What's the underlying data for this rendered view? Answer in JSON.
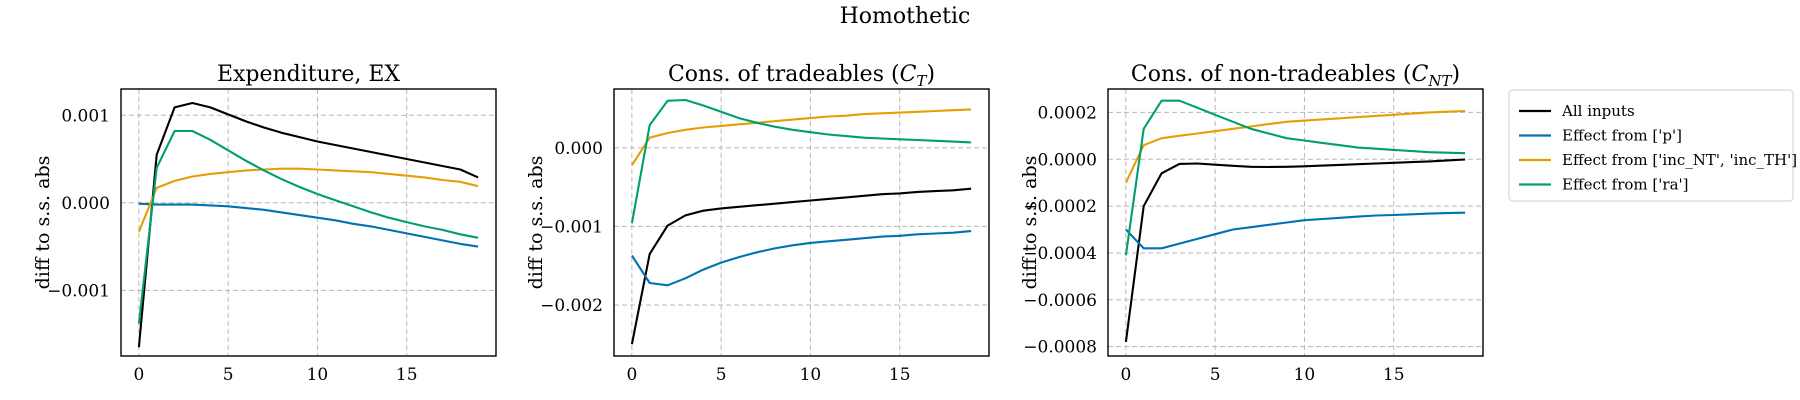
{
  "figure": {
    "suptitle": "Homothetic"
  },
  "legend": {
    "position": "right",
    "entries": [
      {
        "label": "All inputs",
        "color": "#000000"
      },
      {
        "label": "Effect from ['p']",
        "color": "#0072B2"
      },
      {
        "label": "Effect from ['inc_NT', 'inc_TH']",
        "color": "#E69F00"
      },
      {
        "label": "Effect from ['ra']",
        "color": "#009E73"
      }
    ]
  },
  "chart_data": [
    {
      "type": "line",
      "title": "Expenditure, EX",
      "xlabel": "",
      "ylabel": "diff to s.s. abs",
      "grid": true,
      "xlim": [
        -1,
        20
      ],
      "ylim": [
        -0.00175,
        0.0013
      ],
      "xticks": [
        0,
        5,
        10,
        15
      ],
      "xtick_labels": [
        "0",
        "5",
        "10",
        "15"
      ],
      "yticks": [
        -0.001,
        0,
        0.001
      ],
      "ytick_labels": [
        "−0.001",
        "0.000",
        "0.001"
      ],
      "x": [
        0,
        1,
        2,
        3,
        4,
        5,
        6,
        7,
        8,
        9,
        10,
        11,
        12,
        13,
        14,
        15,
        16,
        17,
        18,
        19
      ],
      "series": [
        {
          "name": "All inputs",
          "color": "#000000",
          "values": [
            -0.00165,
            0.00055,
            0.00109,
            0.00114,
            0.00109,
            0.00101,
            0.00093,
            0.00086,
            0.0008,
            0.00075,
            0.0007,
            0.00066,
            0.00062,
            0.00058,
            0.00054,
            0.0005,
            0.00046,
            0.00042,
            0.00038,
            0.00029
          ]
        },
        {
          "name": "Effect from ['p']",
          "color": "#0072B2",
          "values": [
            -1e-05,
            -2e-05,
            -2e-05,
            -2e-05,
            -3e-05,
            -4e-05,
            -6e-05,
            -8e-05,
            -0.00011,
            -0.00014,
            -0.00017,
            -0.0002,
            -0.00024,
            -0.00027,
            -0.00031,
            -0.00035,
            -0.00039,
            -0.00043,
            -0.00047,
            -0.0005
          ]
        },
        {
          "name": "Effect from ['inc_NT', 'inc_TH']",
          "color": "#E69F00",
          "values": [
            -0.00033,
            0.00017,
            0.00025,
            0.0003,
            0.00033,
            0.00035,
            0.00037,
            0.00038,
            0.00039,
            0.00039,
            0.00038,
            0.00037,
            0.00036,
            0.00035,
            0.00033,
            0.00031,
            0.00029,
            0.00026,
            0.00024,
            0.00019
          ]
        },
        {
          "name": "Effect from ['ra']",
          "color": "#009E73",
          "values": [
            -0.00138,
            0.0004,
            0.00082,
            0.00082,
            0.00072,
            0.0006,
            0.00048,
            0.00037,
            0.00027,
            0.00018,
            0.0001,
            3e-05,
            -4e-05,
            -0.00011,
            -0.00017,
            -0.00022,
            -0.00027,
            -0.00031,
            -0.00036,
            -0.0004
          ]
        }
      ]
    },
    {
      "type": "line",
      "title": "Cons. of tradeables (C_T)",
      "xlabel": "",
      "ylabel": "diff to s.s. abs",
      "grid": true,
      "xlim": [
        -1,
        20
      ],
      "ylim": [
        -0.00265,
        0.00075
      ],
      "xticks": [
        0,
        5,
        10,
        15
      ],
      "xtick_labels": [
        "0",
        "5",
        "10",
        "15"
      ],
      "yticks": [
        -0.002,
        -0.001,
        0
      ],
      "ytick_labels": [
        "−0.002",
        "−0.001",
        "0.000"
      ],
      "x": [
        0,
        1,
        2,
        3,
        4,
        5,
        6,
        7,
        8,
        9,
        10,
        11,
        12,
        13,
        14,
        15,
        16,
        17,
        18,
        19
      ],
      "series": [
        {
          "name": "All inputs",
          "color": "#000000",
          "values": [
            -0.0025,
            -0.00135,
            -0.00099,
            -0.00086,
            -0.0008,
            -0.00077,
            -0.00075,
            -0.00073,
            -0.00071,
            -0.00069,
            -0.00067,
            -0.00065,
            -0.00063,
            -0.00061,
            -0.00059,
            -0.00058,
            -0.00056,
            -0.00055,
            -0.00054,
            -0.00052
          ]
        },
        {
          "name": "Effect from ['p']",
          "color": "#0072B2",
          "values": [
            -0.00137,
            -0.00172,
            -0.00175,
            -0.00166,
            -0.00155,
            -0.00146,
            -0.00139,
            -0.00133,
            -0.00128,
            -0.00124,
            -0.00121,
            -0.00119,
            -0.00117,
            -0.00115,
            -0.00113,
            -0.00112,
            -0.0011,
            -0.00109,
            -0.00108,
            -0.00106
          ]
        },
        {
          "name": "Effect from ['inc_NT', 'inc_TH']",
          "color": "#E69F00",
          "values": [
            -0.00022,
            0.00013,
            0.00019,
            0.00023,
            0.00026,
            0.00028,
            0.0003,
            0.00032,
            0.00034,
            0.00036,
            0.00038,
            0.0004,
            0.00041,
            0.00043,
            0.00044,
            0.00045,
            0.00046,
            0.00047,
            0.00048,
            0.00049
          ]
        },
        {
          "name": "Effect from ['ra']",
          "color": "#009E73",
          "values": [
            -0.00096,
            0.00029,
            0.0006,
            0.00061,
            0.00054,
            0.00046,
            0.00038,
            0.00032,
            0.00027,
            0.00023,
            0.0002,
            0.00017,
            0.00015,
            0.00013,
            0.00012,
            0.00011,
            0.0001,
            9e-05,
            8e-05,
            7e-05
          ]
        }
      ]
    },
    {
      "type": "line",
      "title": "Cons. of non-tradeables (C_NT)",
      "xlabel": "",
      "ylabel": "diff to s.s. abs",
      "grid": true,
      "xlim": [
        -1,
        20
      ],
      "ylim": [
        -0.00084,
        0.0003
      ],
      "xticks": [
        0,
        5,
        10,
        15
      ],
      "xtick_labels": [
        "0",
        "5",
        "10",
        "15"
      ],
      "yticks": [
        -0.0008,
        -0.0006,
        -0.0004,
        -0.0002,
        0,
        0.0002
      ],
      "ytick_labels": [
        "−0.0008",
        "−0.0006",
        "−0.0004",
        "−0.0002",
        "0.0000",
        "0.0002"
      ],
      "x": [
        0,
        1,
        2,
        3,
        4,
        5,
        6,
        7,
        8,
        9,
        10,
        11,
        12,
        13,
        14,
        15,
        16,
        17,
        18,
        19
      ],
      "series": [
        {
          "name": "All inputs",
          "color": "#000000",
          "values": [
            -0.00078,
            -0.0002,
            -6e-05,
            -2e-05,
            -1.8e-05,
            -2.3e-05,
            -2.8e-05,
            -3.2e-05,
            -3.3e-05,
            -3.2e-05,
            -3e-05,
            -2.7e-05,
            -2.4e-05,
            -2.1e-05,
            -1.8e-05,
            -1.5e-05,
            -1.2e-05,
            -9e-06,
            -5e-06,
            -1e-06
          ]
        },
        {
          "name": "Effect from ['p']",
          "color": "#0072B2",
          "values": [
            -0.0003,
            -0.00038,
            -0.00038,
            -0.00036,
            -0.00034,
            -0.00032,
            -0.0003,
            -0.00029,
            -0.00028,
            -0.00027,
            -0.00026,
            -0.000255,
            -0.00025,
            -0.000245,
            -0.00024,
            -0.000238,
            -0.000235,
            -0.000232,
            -0.00023,
            -0.000228
          ]
        },
        {
          "name": "Effect from ['inc_NT', 'inc_TH']",
          "color": "#E69F00",
          "values": [
            -0.0001,
            6e-05,
            9e-05,
            0.0001,
            0.00011,
            0.00012,
            0.00013,
            0.00014,
            0.00015,
            0.00016,
            0.000165,
            0.00017,
            0.000175,
            0.00018,
            0.000185,
            0.00019,
            0.000195,
            0.0002,
            0.000203,
            0.000206
          ]
        },
        {
          "name": "Effect from ['ra']",
          "color": "#009E73",
          "values": [
            -0.00041,
            0.00013,
            0.00025,
            0.00025,
            0.00022,
            0.00019,
            0.00016,
            0.00013,
            0.00011,
            9e-05,
            8e-05,
            7e-05,
            6e-05,
            5e-05,
            4.5e-05,
            4e-05,
            3.5e-05,
            3e-05,
            2.8e-05,
            2.6e-05
          ]
        }
      ]
    }
  ]
}
